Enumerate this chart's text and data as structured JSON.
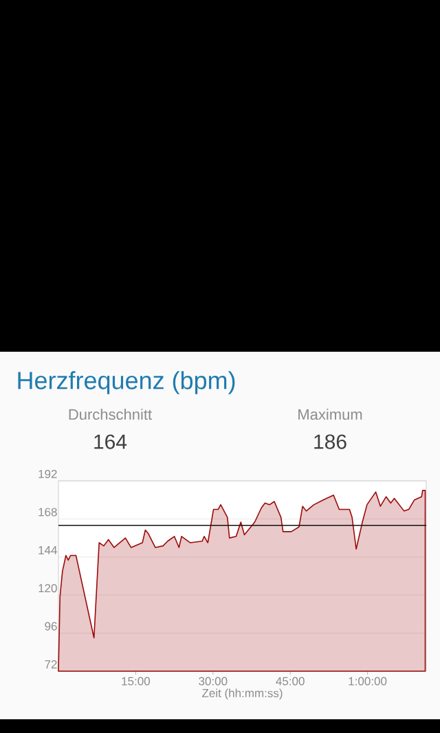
{
  "chart_data": {
    "type": "area",
    "title": "Herzfrequenz (bpm)",
    "xlabel": "Zeit (hh:mm:ss)",
    "annotations": [
      "Durchschnitt",
      "164",
      "Maximum",
      "186"
    ],
    "x": [
      0,
      0.3,
      0.78,
      1.45,
      1.9,
      2.35,
      3.4,
      3.6,
      6.9,
      7.9,
      8.8,
      9.7,
      10.8,
      13.0,
      14.1,
      16.3,
      16.86,
      17.4,
      18.8,
      20.3,
      21.2,
      22.5,
      23.4,
      23.9,
      25.6,
      27.9,
      28.3,
      29.0,
      30.1,
      31.0,
      31.5,
      32.8,
      33.2,
      34.5,
      35.4,
      36.1,
      38.1,
      39.4,
      40.1,
      41.0,
      41.9,
      43.2,
      43.6,
      45.2,
      46.7,
      47.4,
      48.1,
      49.6,
      51.4,
      53.4,
      54.5,
      56.5,
      57.0,
      57.8,
      59.0,
      59.9,
      61.6,
      62.5,
      63.6,
      64.5,
      65.2,
      67.1,
      68.0,
      69.1,
      70.5,
      70.7,
      71.2
    ],
    "series": [
      {
        "color": "#9b0a0a",
        "values": [
          73,
          119,
          135,
          145,
          142,
          145,
          145,
          142,
          93,
          153,
          151,
          155,
          150,
          156,
          150,
          153,
          161,
          159,
          150,
          151,
          154,
          157,
          150,
          157,
          153,
          154,
          157,
          153,
          174,
          174,
          177,
          169,
          156,
          157,
          166,
          158,
          166,
          175,
          178,
          177,
          179,
          169,
          160,
          160,
          163,
          176,
          173,
          177,
          180,
          183,
          174,
          174,
          169,
          149,
          166,
          177,
          185,
          176,
          182,
          178,
          181,
          173,
          174,
          180,
          182,
          186,
          186
        ]
      }
    ],
    "xlim": [
      0,
      71.4
    ],
    "ylim": [
      72,
      192
    ],
    "xticks": [
      {
        "value": 15,
        "label": "15:00"
      },
      {
        "value": 30,
        "label": "30:00"
      },
      {
        "value": 45,
        "label": "45:00"
      },
      {
        "value": 60,
        "label": "1:00:00"
      }
    ],
    "yticks": [
      72,
      96,
      120,
      144,
      168,
      192
    ],
    "grid": "y",
    "ref_lines": [
      {
        "axis": "y",
        "value": 164,
        "color": "#111111"
      }
    ]
  }
}
